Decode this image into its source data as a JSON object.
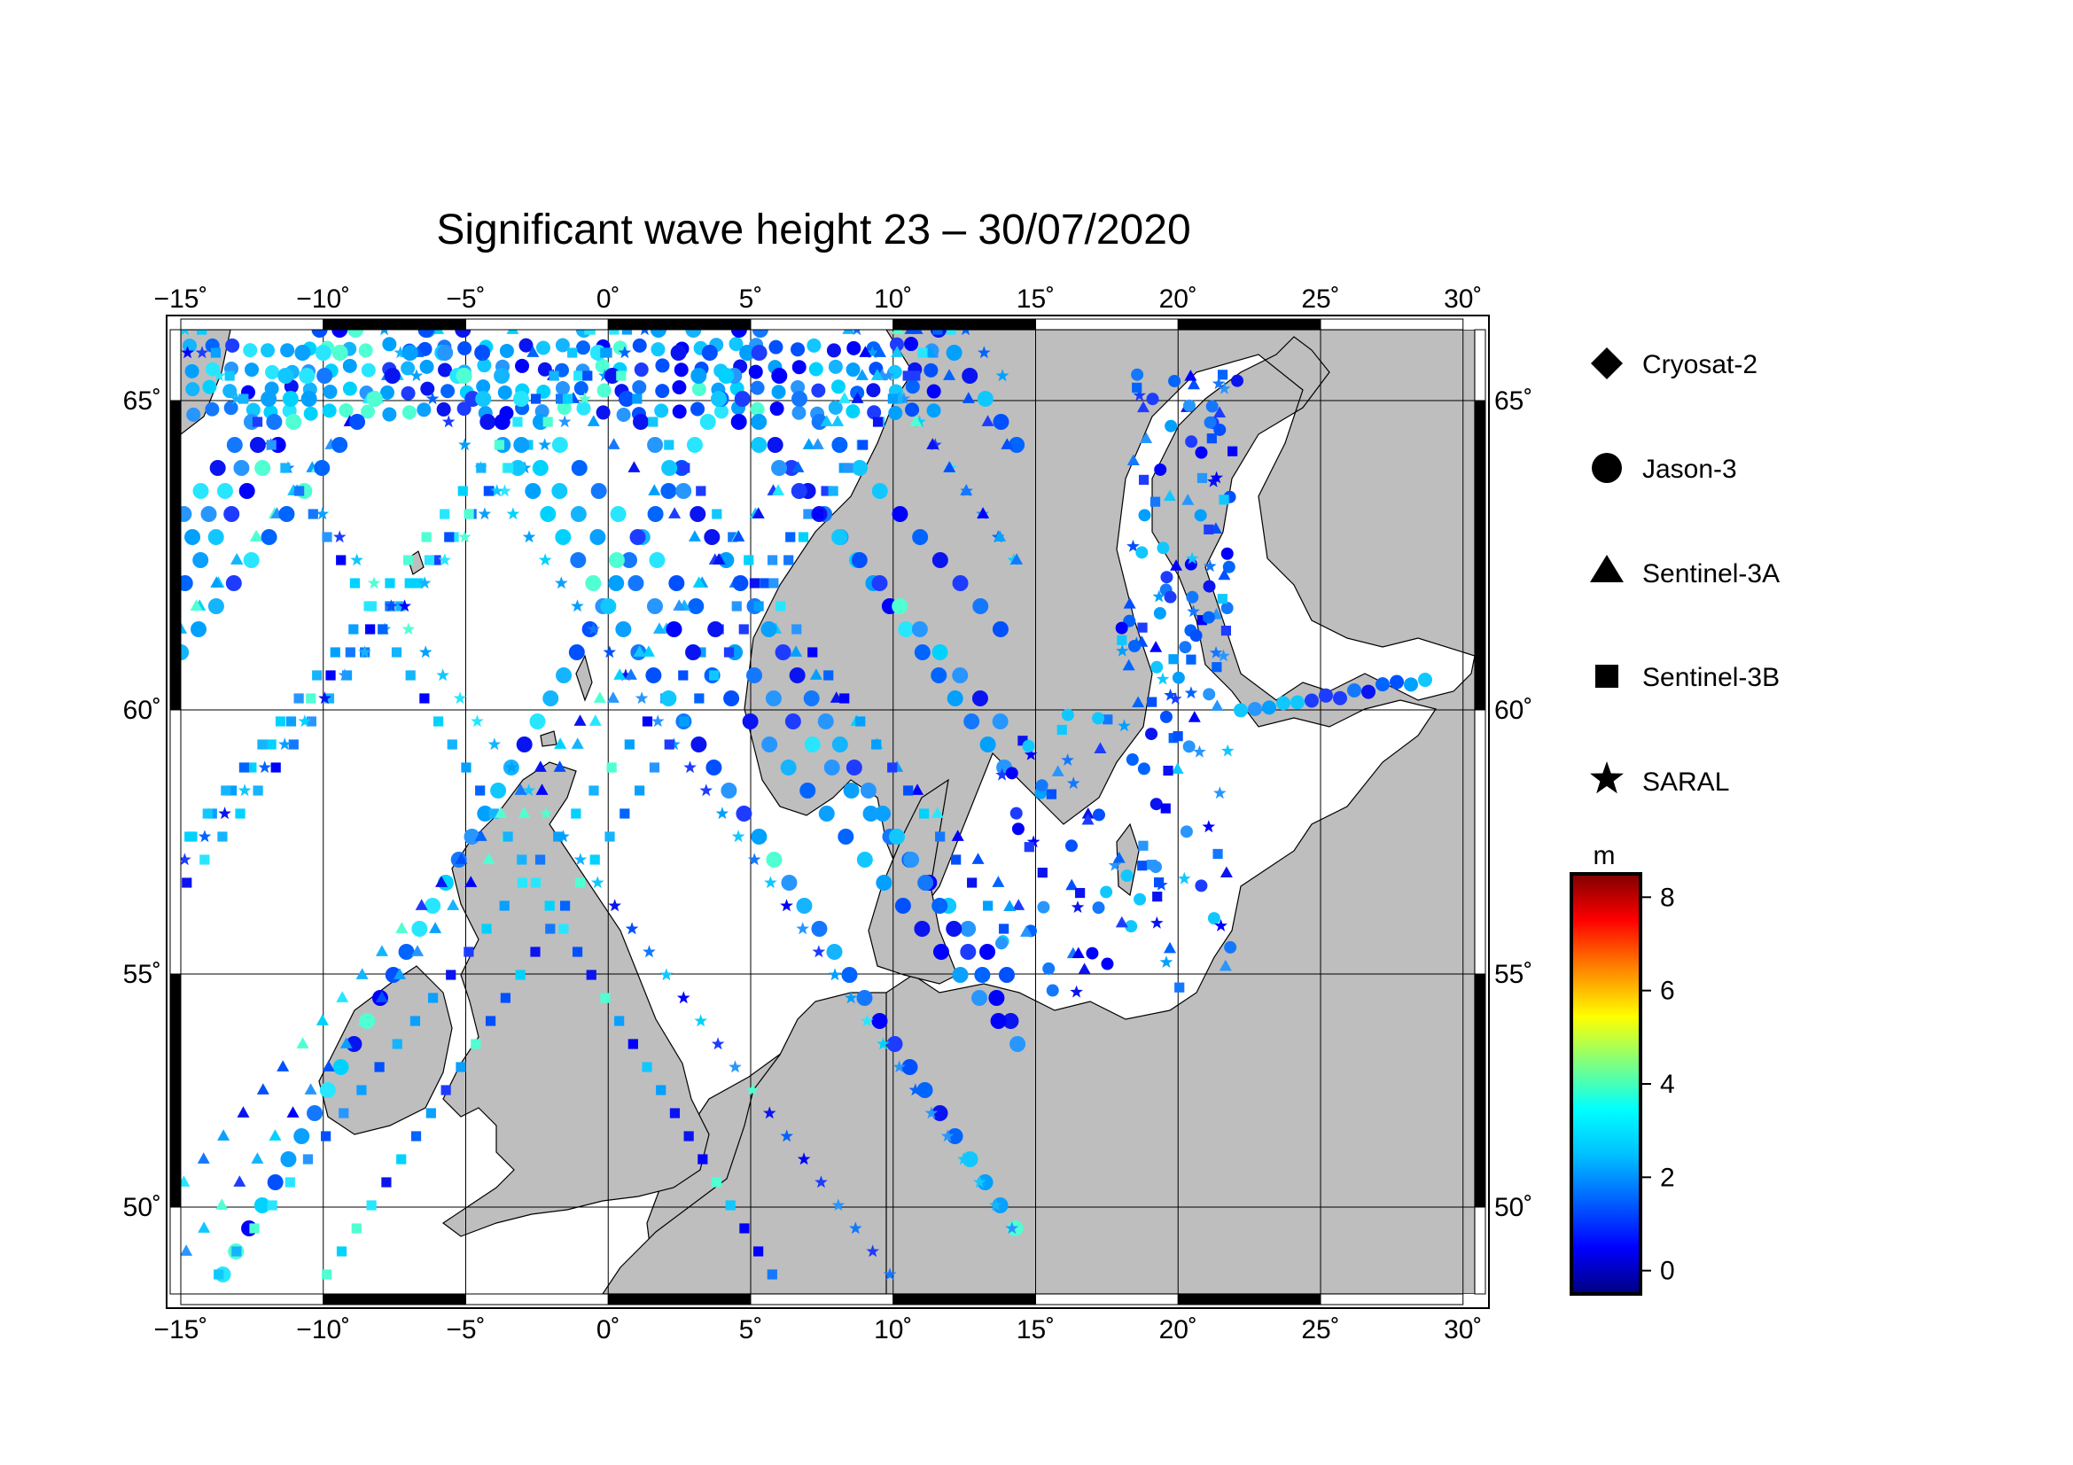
{
  "title": "Significant wave height 23 – 30/07/2020",
  "map": {
    "lon_range": [
      -15,
      30
    ],
    "lat_range": [
      48.5,
      66.4
    ],
    "top_lon_ticks": [
      "−15˚",
      "−10˚",
      "−5˚",
      "0˚",
      "5˚",
      "10˚",
      "15˚",
      "20˚",
      "25˚",
      "30˚"
    ],
    "bottom_lon_ticks": [
      "−15˚",
      "−10˚",
      "−5˚",
      "0˚",
      "5˚",
      "10˚",
      "15˚",
      "20˚",
      "25˚",
      "30˚"
    ],
    "left_lat_ticks": [
      "65˚",
      "60˚",
      "55˚",
      "50˚"
    ],
    "right_lat_ticks": [
      "65˚",
      "60˚",
      "55˚",
      "50˚"
    ],
    "land_color": "#bebebe",
    "sea_color": "#ffffff"
  },
  "legend": {
    "items": [
      {
        "label": "Cryosat-2",
        "symbol": "diamond"
      },
      {
        "label": "Jason-3",
        "symbol": "circle"
      },
      {
        "label": "Sentinel-3A",
        "symbol": "triangle"
      },
      {
        "label": "Sentinel-3B",
        "symbol": "square"
      },
      {
        "label": "SARAL",
        "symbol": "star"
      }
    ]
  },
  "colorbar": {
    "unit": "m",
    "ticks": [
      "8",
      "6",
      "4",
      "2",
      "0"
    ],
    "tick_values": [
      8,
      6,
      4,
      2,
      0
    ],
    "range": [
      -0.5,
      8.5
    ],
    "colors": [
      "#00007f",
      "#0000ff",
      "#007fff",
      "#00ffff",
      "#7fff7f",
      "#ffff00",
      "#ff7f00",
      "#ff0000",
      "#7f0000"
    ]
  }
}
